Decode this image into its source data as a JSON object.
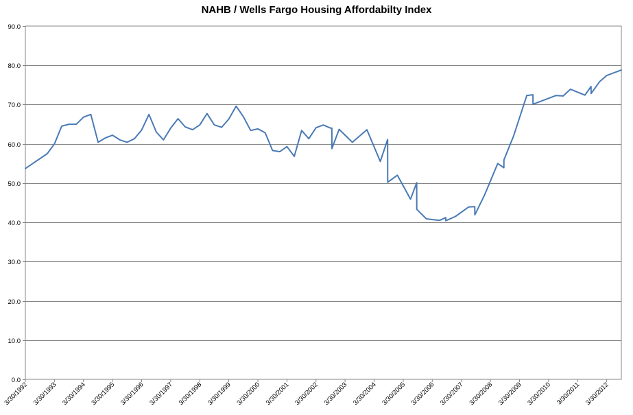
{
  "chart_data": {
    "type": "line",
    "title": "NAHB / Wells Fargo Housing Affordabilty Index",
    "xlabel": "",
    "ylabel": "",
    "ylim": [
      0,
      90
    ],
    "yticks": [
      "0.0",
      "10.0",
      "20.0",
      "30.0",
      "40.0",
      "50.0",
      "60.0",
      "70.0",
      "80.0",
      "90.0"
    ],
    "yticks_values": [
      0,
      10,
      20,
      30,
      40,
      50,
      60,
      70,
      80,
      90
    ],
    "xlim": [
      "1992-03-30",
      "2012-09-30"
    ],
    "xticks": [
      "3/30/1992",
      "3/30/1993",
      "3/30/1994",
      "3/30/1995",
      "3/30/1996",
      "3/30/1997",
      "3/30/1998",
      "3/30/1999",
      "3/30/2000",
      "3/30/2001",
      "3/30/2002",
      "3/30/2003",
      "3/30/2004",
      "3/30/2005",
      "3/30/2006",
      "3/30/2007",
      "3/30/2008",
      "3/30/2009",
      "3/30/2010",
      "3/30/2011",
      "3/30/2012"
    ],
    "xticks_values": [
      "1992-03-30",
      "1993-03-30",
      "1994-03-30",
      "1995-03-30",
      "1996-03-30",
      "1997-03-30",
      "1998-03-30",
      "1999-03-30",
      "2000-03-30",
      "2001-03-30",
      "2002-03-30",
      "2003-03-30",
      "2004-03-30",
      "2005-03-30",
      "2006-03-30",
      "2007-03-30",
      "2008-03-30",
      "2009-03-30",
      "2010-03-30",
      "2011-03-30",
      "2012-03-30"
    ],
    "grid": true,
    "line_color": "#4a7ab5",
    "series": [
      {
        "x": [
          "1992-03-30",
          "1992-12-30",
          "1993-03-30",
          "1993-06-30",
          "1993-09-30",
          "1993-12-30",
          "1994-03-30",
          "1994-06-30",
          "1994-09-30",
          "1994-12-30",
          "1995-03-30",
          "1995-06-30",
          "1995-09-30",
          "1995-12-30",
          "1996-03-30",
          "1996-06-30",
          "1996-09-30",
          "1996-12-30",
          "1997-03-30",
          "1997-06-30",
          "1997-09-30",
          "1997-12-30",
          "1998-03-30",
          "1998-06-30",
          "1998-09-30",
          "1998-12-30",
          "1999-03-30",
          "1999-06-30",
          "1999-09-30",
          "1999-12-30",
          "2000-03-30",
          "2000-06-30",
          "2000-09-30",
          "2000-12-30",
          "2001-03-30",
          "2001-06-30",
          "2001-09-30",
          "2001-12-30",
          "2002-03-30",
          "2002-06-30",
          "2002-09-30",
          "2002-10-15",
          "2002-10-16",
          "2003-01-15",
          "2003-06-30",
          "2003-12-30",
          "2004-06-15",
          "2004-09-15",
          "2004-09-16",
          "2005-01-15",
          "2005-06-30",
          "2005-09-15",
          "2005-09-16",
          "2006-01-15",
          "2006-06-30",
          "2006-09-15",
          "2006-09-16",
          "2007-01-15",
          "2007-06-30",
          "2007-09-15",
          "2007-09-16",
          "2008-01-15",
          "2008-06-30",
          "2008-09-15",
          "2008-09-16",
          "2009-01-15",
          "2009-06-30",
          "2009-09-15",
          "2009-09-16",
          "2010-06-30",
          "2010-09-30",
          "2010-12-30",
          "2011-06-30",
          "2011-09-15",
          "2011-09-16",
          "2011-12-30",
          "2012-03-30",
          "2012-09-30"
        ],
        "y": [
          53.7,
          57.5,
          60.0,
          64.5,
          65.0,
          65.0,
          66.8,
          67.5,
          60.4,
          61.5,
          62.2,
          61.0,
          60.4,
          61.3,
          63.5,
          67.5,
          63.0,
          61.0,
          64.0,
          66.4,
          64.3,
          63.6,
          64.8,
          67.7,
          64.8,
          64.2,
          66.3,
          69.6,
          66.9,
          63.4,
          63.8,
          62.8,
          58.3,
          58.0,
          59.3,
          56.8,
          63.4,
          61.3,
          64.1,
          64.8,
          64.0,
          64.0,
          58.8,
          63.7,
          60.4,
          63.6,
          55.5,
          61.1,
          50.2,
          52.0,
          45.9,
          50.1,
          43.3,
          40.9,
          40.5,
          41.2,
          40.4,
          41.5,
          43.9,
          44.0,
          41.9,
          46.9,
          55.0,
          53.9,
          55.9,
          62.0,
          72.3,
          72.5,
          70.1,
          72.3,
          72.2,
          73.9,
          72.4,
          74.6,
          72.8,
          75.8,
          77.4,
          78.8
        ]
      }
    ]
  }
}
